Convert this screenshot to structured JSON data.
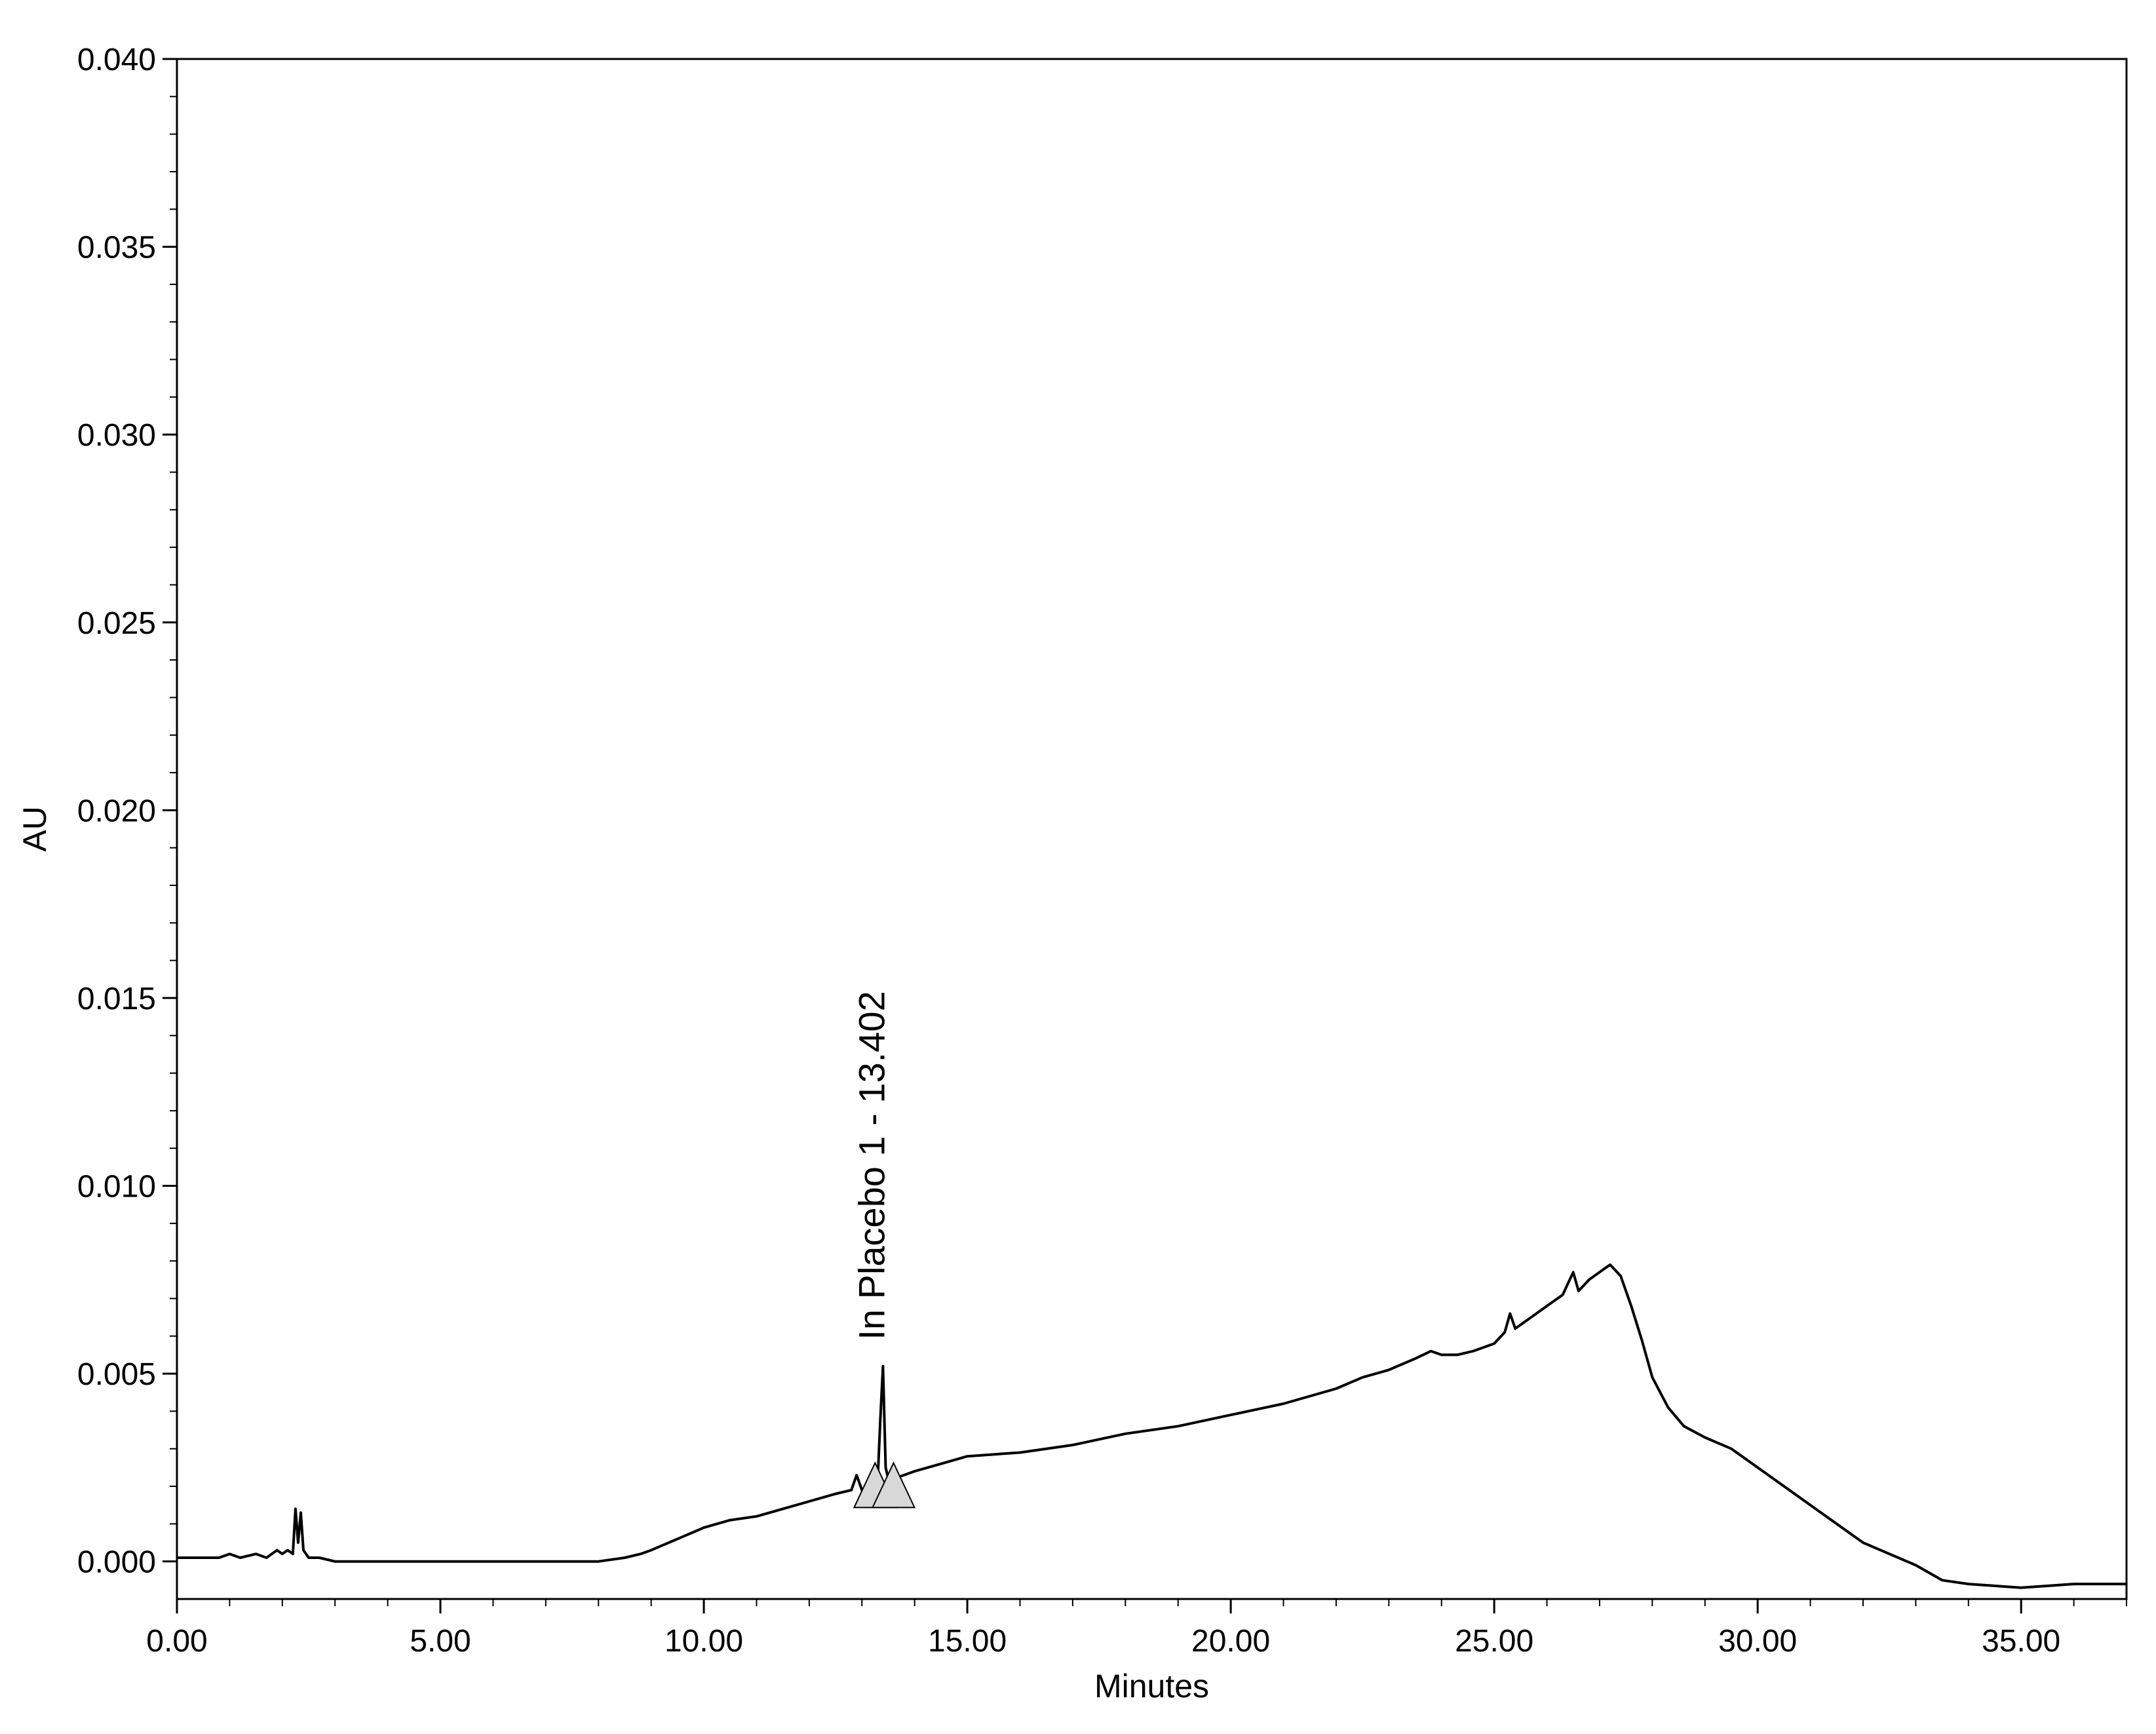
{
  "chart_data": {
    "type": "line",
    "title": "",
    "xlabel": "Minutes",
    "ylabel": "AU",
    "xlim": [
      0.0,
      37.0
    ],
    "ylim": [
      -0.001,
      0.04
    ],
    "x_ticks": [
      0,
      5,
      10,
      15,
      20,
      25,
      30,
      35
    ],
    "x_tick_labels": [
      "0.00",
      "5.00",
      "10.00",
      "15.00",
      "20.00",
      "25.00",
      "30.00",
      "35.00"
    ],
    "y_ticks": [
      0.0,
      0.005,
      0.01,
      0.015,
      0.02,
      0.025,
      0.03,
      0.035,
      0.04
    ],
    "y_tick_labels": [
      "0.000",
      "0.005",
      "0.010",
      "0.015",
      "0.020",
      "0.025",
      "0.030",
      "0.035",
      "0.040"
    ],
    "grid": false,
    "legend": "none",
    "line_color": "#000000",
    "series": [
      {
        "x": [
          0.0,
          0.8,
          1.0,
          1.2,
          1.5,
          1.7,
          1.9,
          2.0,
          2.1,
          2.2,
          2.25,
          2.3,
          2.35,
          2.4,
          2.5,
          2.7,
          3.0,
          4.0,
          5.0,
          6.0,
          7.0,
          8.0,
          8.5,
          8.8,
          9.0,
          9.5,
          10.0,
          10.5,
          11.0,
          11.5,
          12.0,
          12.5,
          12.8,
          12.9,
          13.0,
          13.2,
          13.3,
          13.35,
          13.4,
          13.45,
          13.5,
          13.6,
          13.8,
          14.0,
          14.5,
          15.0,
          16.0,
          17.0,
          18.0,
          19.0,
          20.0,
          21.0,
          22.0,
          22.5,
          23.0,
          23.5,
          23.8,
          24.0,
          24.3,
          24.6,
          25.0,
          25.2,
          25.3,
          25.4,
          25.6,
          25.8,
          26.0,
          26.3,
          26.5,
          26.6,
          26.8,
          27.0,
          27.2,
          27.4,
          27.6,
          27.8,
          28.0,
          28.3,
          28.6,
          29.0,
          29.5,
          30.0,
          30.5,
          31.0,
          31.5,
          32.0,
          32.5,
          33.0,
          33.5,
          34.0,
          35.0,
          36.0,
          37.0
        ],
        "y": [
          0.0001,
          0.0001,
          0.0002,
          0.0001,
          0.0002,
          0.0001,
          0.0003,
          0.0002,
          0.0003,
          0.0002,
          0.0014,
          0.0005,
          0.0013,
          0.0003,
          0.0001,
          0.0001,
          0.0,
          0.0,
          0.0,
          0.0,
          0.0,
          0.0,
          0.0001,
          0.0002,
          0.0003,
          0.0006,
          0.0009,
          0.0011,
          0.0012,
          0.0014,
          0.0016,
          0.0018,
          0.0019,
          0.0023,
          0.0019,
          0.0021,
          0.0022,
          0.0038,
          0.0052,
          0.0025,
          0.0022,
          0.0022,
          0.0023,
          0.0024,
          0.0026,
          0.0028,
          0.0029,
          0.0031,
          0.0034,
          0.0036,
          0.0039,
          0.0042,
          0.0046,
          0.0049,
          0.0051,
          0.0054,
          0.0056,
          0.0055,
          0.0055,
          0.0056,
          0.0058,
          0.0061,
          0.0066,
          0.0062,
          0.0064,
          0.0066,
          0.0068,
          0.0071,
          0.0077,
          0.0072,
          0.0075,
          0.0077,
          0.0079,
          0.0076,
          0.0068,
          0.0059,
          0.0049,
          0.0041,
          0.0036,
          0.0033,
          0.003,
          0.0025,
          0.002,
          0.0015,
          0.001,
          0.0005,
          0.0002,
          -0.0001,
          -0.0005,
          -0.0006,
          -0.0007,
          -0.0006,
          -0.0006
        ]
      }
    ],
    "annotations": [
      {
        "text": "In Placebo 1 - 13.402",
        "x": 13.402,
        "y": 0.0052
      }
    ],
    "integration_markers": [
      {
        "x": 13.25,
        "y": 0.0021
      },
      {
        "x": 13.6,
        "y": 0.0021
      }
    ]
  }
}
